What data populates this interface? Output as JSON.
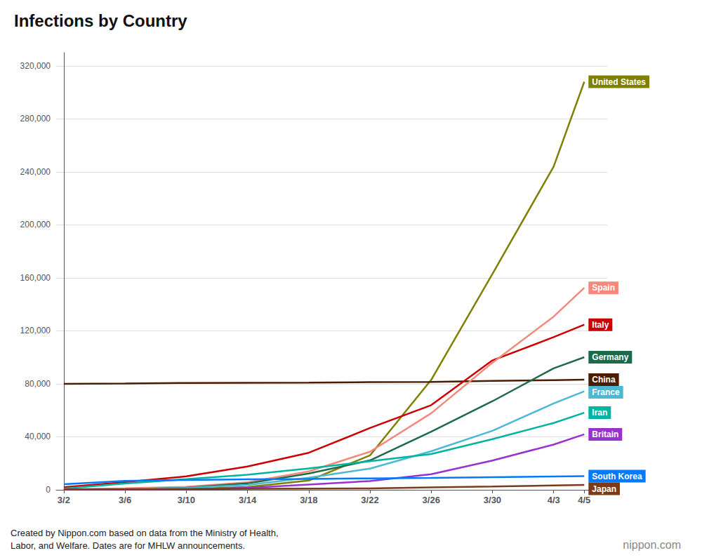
{
  "chart_data": {
    "type": "line",
    "title": "Infections by Country",
    "annotations": [
      "Created by Nippon.com based on data from the Ministry of Health,\nLabor, and Welfare. Dates are for MHLW announcements.",
      "nippon.com"
    ],
    "x": [
      0,
      4,
      8,
      12,
      16,
      20,
      24,
      28,
      32,
      34
    ],
    "xlim": [
      -0.5,
      35.5
    ],
    "xticks": [
      {
        "value": 0,
        "label": "3/2"
      },
      {
        "value": 4,
        "label": "3/6"
      },
      {
        "value": 8,
        "label": "3/10"
      },
      {
        "value": 12,
        "label": "3/14"
      },
      {
        "value": 16,
        "label": "3/18"
      },
      {
        "value": 20,
        "label": "3/22"
      },
      {
        "value": 24,
        "label": "3/26"
      },
      {
        "value": 28,
        "label": "3/30"
      },
      {
        "value": 32,
        "label": "4/3"
      },
      {
        "value": 34,
        "label": "4/5"
      }
    ],
    "ylim": [
      0,
      330000
    ],
    "yticks": [
      0,
      {
        "value": 40000,
        "label": "40,000"
      },
      {
        "value": 80000,
        "label": "80,000"
      },
      {
        "value": 120000,
        "label": "120,000"
      },
      {
        "value": 160000,
        "label": "160,000"
      },
      {
        "value": 200000,
        "label": "200,000"
      },
      {
        "value": 240000,
        "label": "240,000"
      },
      {
        "value": 280000,
        "label": "280,000"
      },
      {
        "value": 320000,
        "label": "320,000"
      }
    ],
    "grid": true,
    "series": [
      {
        "name": "United States",
        "color": "#808000",
        "values": [
          100,
          300,
          700,
          2100,
          7000,
          26000,
          83000,
          163000,
          244000,
          308000
        ]
      },
      {
        "name": "China",
        "color": "#4A1C00",
        "values": [
          80026,
          80302,
          80651,
          80824,
          80967,
          81305,
          81496,
          82198,
          82809,
          83134
        ]
      },
      {
        "name": "Italy",
        "color": "#CC0000",
        "values": [
          2036,
          5883,
          10149,
          17660,
          27980,
          46638,
          63927,
          97689,
          115242,
          124632
        ]
      },
      {
        "name": "Spain",
        "color": "#F4887A",
        "values": [
          430,
          1204,
          2277,
          5753,
          13910,
          28768,
          57786,
          95923,
          130759,
          152446
        ]
      },
      {
        "name": "Germany",
        "color": "#1B6B4A",
        "values": [
          157,
          534,
          1565,
          4838,
          12327,
          22213,
          43938,
          66885,
          91714,
          100123
        ]
      },
      {
        "name": "France",
        "color": "#4BB8D4",
        "values": [
          191,
          653,
          1412,
          3661,
          9134,
          16018,
          29155,
          44550,
          65202,
          74390
        ]
      },
      {
        "name": "Iran",
        "color": "#00B5A0",
        "values": [
          978,
          4747,
          8042,
          11364,
          16169,
          21638,
          27017,
          38309,
          50468,
          58226
        ]
      },
      {
        "name": "Britain",
        "color": "#9B30D0",
        "values": [
          90,
          209,
          590,
          1395,
          3983,
          6650,
          11812,
          22141,
          34173,
          41903
        ]
      },
      {
        "name": "South Korea",
        "color": "#007BFF",
        "values": [
          4212,
          6767,
          7478,
          7979,
          8236,
          8652,
          9037,
          9583,
          10062,
          10284
        ]
      },
      {
        "name": "Japan",
        "color": "#7B3B1A",
        "values": [
          239,
          408,
          581,
          761,
          912,
          1101,
          1866,
          2495,
          3271,
          3654
        ]
      }
    ]
  }
}
